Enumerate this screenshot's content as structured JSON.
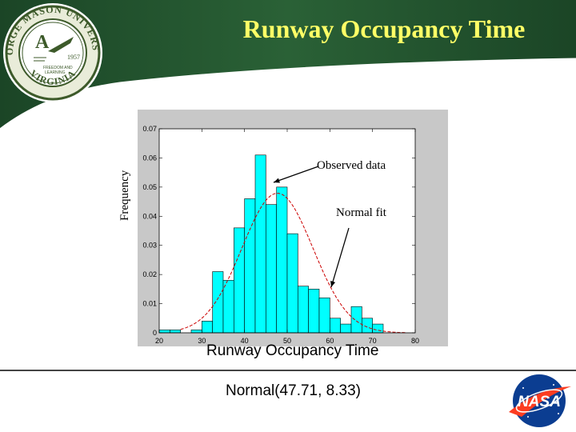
{
  "slide": {
    "title": "Runway Occupancy Time",
    "distribution": "Normal(47.71, 8.33)",
    "colors": {
      "header_green": "#1f4f2a",
      "title_yellow": "#ffff66",
      "bar_fill": "#00ffff",
      "fit_line": "#cc0000",
      "axes_bg": "#ffffff",
      "panel_bg": "#c8c8c8"
    }
  },
  "seal": {
    "icon": "university-seal-icon",
    "lettering": "GEORGE MASON UNIVERSITY VIRGINIA 1957 FREEDOM AND LEARNING"
  },
  "nasa_logo": {
    "icon": "nasa-logo-icon",
    "lettering": "NASA"
  },
  "annotations": {
    "observed": "Observed data",
    "fit": "Normal fit"
  },
  "chart_data": {
    "type": "bar",
    "xlabel": "Runway Occupancy Time",
    "ylabel": "Frequency",
    "xlim": [
      20,
      80
    ],
    "ylim": [
      0,
      0.07
    ],
    "xticks": [
      "20",
      "30",
      "40",
      "50",
      "60",
      "70",
      "80"
    ],
    "yticks": [
      "0",
      "0.01",
      "0.02",
      "0.03",
      "0.04",
      "0.05",
      "0.06",
      "0.07"
    ],
    "bin_width": 2.5,
    "bins": [
      {
        "x0": 20.0,
        "value": 0.001
      },
      {
        "x0": 22.5,
        "value": 0.001
      },
      {
        "x0": 25.0,
        "value": 0.0
      },
      {
        "x0": 27.5,
        "value": 0.001
      },
      {
        "x0": 30.0,
        "value": 0.004
      },
      {
        "x0": 32.5,
        "value": 0.021
      },
      {
        "x0": 35.0,
        "value": 0.018
      },
      {
        "x0": 37.5,
        "value": 0.036
      },
      {
        "x0": 40.0,
        "value": 0.046
      },
      {
        "x0": 42.5,
        "value": 0.061
      },
      {
        "x0": 45.0,
        "value": 0.044
      },
      {
        "x0": 47.5,
        "value": 0.05
      },
      {
        "x0": 50.0,
        "value": 0.034
      },
      {
        "x0": 52.5,
        "value": 0.016
      },
      {
        "x0": 55.0,
        "value": 0.015
      },
      {
        "x0": 57.5,
        "value": 0.012
      },
      {
        "x0": 60.0,
        "value": 0.005
      },
      {
        "x0": 62.5,
        "value": 0.003
      },
      {
        "x0": 65.0,
        "value": 0.009
      },
      {
        "x0": 67.5,
        "value": 0.005
      },
      {
        "x0": 70.0,
        "value": 0.003
      }
    ],
    "fit": {
      "distribution": "normal",
      "mean": 47.71,
      "std": 8.33,
      "x_range": [
        25,
        78
      ]
    }
  }
}
